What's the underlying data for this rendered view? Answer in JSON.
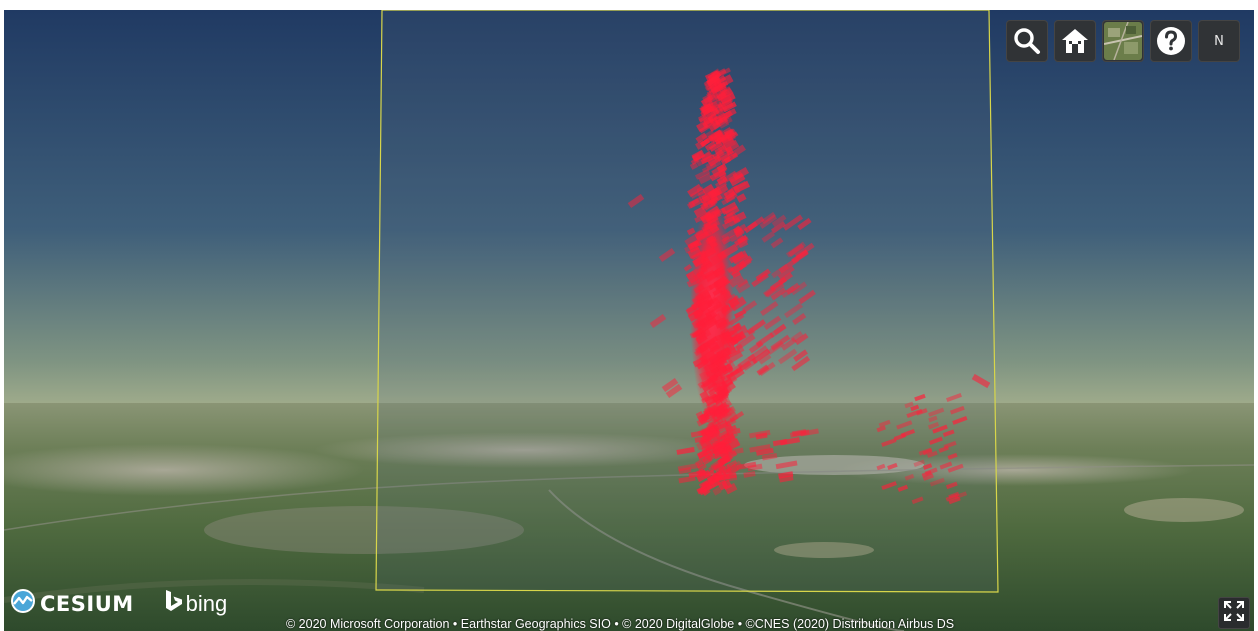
{
  "map": {
    "type": "3d-globe-scene",
    "view": "oblique perspective over terrain with point cloud",
    "overlay": "yellow bounding box outline",
    "point_color": "#ff1f3a",
    "box_color": "#d8d64a",
    "sky_top": "#1f3a62",
    "sky_horizon": "#98a889"
  },
  "toolbar": {
    "search": {
      "icon": "search-icon"
    },
    "home": {
      "icon": "home-icon"
    },
    "base_layer": {
      "icon": "base-layer-picker-icon"
    },
    "help": {
      "icon": "help-icon"
    },
    "navigation_label": "N"
  },
  "logos": {
    "cesium": "CESIUM",
    "bing": "bing"
  },
  "attribution": "© 2020 Microsoft Corporation • Earthstar Geographics SIO • © 2020 DigitalGlobe • ©CNES (2020) Distribution Airbus DS",
  "fullscreen": {
    "icon": "fullscreen-icon"
  }
}
